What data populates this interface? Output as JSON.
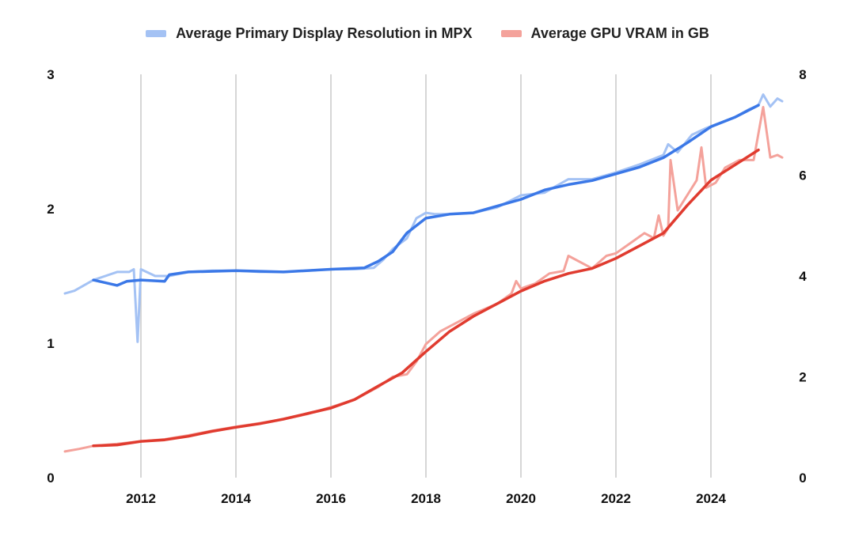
{
  "chart_data": {
    "type": "line",
    "legend_position": "top",
    "grid": {
      "vertical": true,
      "horizontal": false
    },
    "xlim": [
      2010.4,
      2025.5
    ],
    "x_ticks": [
      2012,
      2014,
      2016,
      2018,
      2020,
      2022,
      2024
    ],
    "y_left": {
      "lim": [
        0,
        3
      ],
      "ticks": [
        0,
        1,
        2,
        3
      ]
    },
    "y_right": {
      "lim": [
        0,
        8
      ],
      "ticks": [
        0,
        2,
        4,
        6,
        8
      ]
    },
    "series": [
      {
        "name": "Average Primary Display Resolution in MPX",
        "axis": "left",
        "color": "#a4c2f4",
        "trend_color": "#3b78e7",
        "raw": [
          [
            2010.4,
            1.37
          ],
          [
            2010.6,
            1.39
          ],
          [
            2011.0,
            1.47
          ],
          [
            2011.5,
            1.53
          ],
          [
            2011.75,
            1.53
          ],
          [
            2011.85,
            1.55
          ],
          [
            2011.93,
            1.01
          ],
          [
            2012.0,
            1.55
          ],
          [
            2012.3,
            1.5
          ],
          [
            2012.6,
            1.5
          ],
          [
            2013.0,
            1.53
          ],
          [
            2013.5,
            1.54
          ],
          [
            2014.0,
            1.54
          ],
          [
            2014.5,
            1.53
          ],
          [
            2015.0,
            1.53
          ],
          [
            2015.5,
            1.54
          ],
          [
            2016.0,
            1.55
          ],
          [
            2016.5,
            1.55
          ],
          [
            2016.9,
            1.56
          ],
          [
            2017.1,
            1.62
          ],
          [
            2017.3,
            1.7
          ],
          [
            2017.6,
            1.78
          ],
          [
            2017.8,
            1.93
          ],
          [
            2018.0,
            1.97
          ],
          [
            2018.2,
            1.96
          ],
          [
            2018.5,
            1.96
          ],
          [
            2019.0,
            1.97
          ],
          [
            2019.5,
            2.01
          ],
          [
            2020.0,
            2.1
          ],
          [
            2020.5,
            2.12
          ],
          [
            2021.0,
            2.22
          ],
          [
            2021.5,
            2.22
          ],
          [
            2022.0,
            2.27
          ],
          [
            2022.5,
            2.33
          ],
          [
            2023.0,
            2.4
          ],
          [
            2023.1,
            2.48
          ],
          [
            2023.3,
            2.42
          ],
          [
            2023.6,
            2.55
          ],
          [
            2023.9,
            2.6
          ],
          [
            2024.2,
            2.64
          ],
          [
            2024.5,
            2.68
          ],
          [
            2024.8,
            2.74
          ],
          [
            2025.0,
            2.77
          ],
          [
            2025.1,
            2.85
          ],
          [
            2025.25,
            2.76
          ],
          [
            2025.4,
            2.82
          ],
          [
            2025.5,
            2.8
          ]
        ],
        "trend": [
          [
            2011.0,
            1.47
          ],
          [
            2011.5,
            1.43
          ],
          [
            2011.7,
            1.46
          ],
          [
            2012.0,
            1.47
          ],
          [
            2012.5,
            1.46
          ],
          [
            2012.6,
            1.51
          ],
          [
            2013.0,
            1.53
          ],
          [
            2014.0,
            1.54
          ],
          [
            2015.0,
            1.53
          ],
          [
            2016.0,
            1.55
          ],
          [
            2016.7,
            1.56
          ],
          [
            2017.0,
            1.61
          ],
          [
            2017.3,
            1.68
          ],
          [
            2017.6,
            1.82
          ],
          [
            2018.0,
            1.93
          ],
          [
            2018.5,
            1.96
          ],
          [
            2019.0,
            1.97
          ],
          [
            2019.5,
            2.02
          ],
          [
            2020.0,
            2.07
          ],
          [
            2020.5,
            2.14
          ],
          [
            2021.0,
            2.18
          ],
          [
            2021.5,
            2.21
          ],
          [
            2022.0,
            2.26
          ],
          [
            2022.5,
            2.31
          ],
          [
            2023.0,
            2.38
          ],
          [
            2023.5,
            2.49
          ],
          [
            2024.0,
            2.61
          ],
          [
            2024.5,
            2.68
          ],
          [
            2025.0,
            2.77
          ]
        ]
      },
      {
        "name": "Average GPU VRAM in GB",
        "axis": "right",
        "color": "#f4a29b",
        "trend_color": "#e03b2f",
        "raw": [
          [
            2010.4,
            0.52
          ],
          [
            2010.7,
            0.57
          ],
          [
            2011.0,
            0.63
          ],
          [
            2011.5,
            0.67
          ],
          [
            2012.0,
            0.72
          ],
          [
            2012.5,
            0.76
          ],
          [
            2013.0,
            0.84
          ],
          [
            2013.5,
            0.93
          ],
          [
            2014.0,
            1.01
          ],
          [
            2014.5,
            1.08
          ],
          [
            2015.0,
            1.16
          ],
          [
            2015.5,
            1.26
          ],
          [
            2016.0,
            1.4
          ],
          [
            2016.5,
            1.55
          ],
          [
            2017.0,
            1.8
          ],
          [
            2017.3,
            2.0
          ],
          [
            2017.6,
            2.05
          ],
          [
            2017.8,
            2.3
          ],
          [
            2018.0,
            2.65
          ],
          [
            2018.3,
            2.9
          ],
          [
            2018.6,
            3.05
          ],
          [
            2019.0,
            3.25
          ],
          [
            2019.5,
            3.45
          ],
          [
            2019.8,
            3.65
          ],
          [
            2019.9,
            3.9
          ],
          [
            2020.0,
            3.75
          ],
          [
            2020.3,
            3.85
          ],
          [
            2020.6,
            4.05
          ],
          [
            2020.9,
            4.1
          ],
          [
            2021.0,
            4.4
          ],
          [
            2021.5,
            4.15
          ],
          [
            2021.8,
            4.4
          ],
          [
            2022.0,
            4.45
          ],
          [
            2022.3,
            4.65
          ],
          [
            2022.6,
            4.85
          ],
          [
            2022.8,
            4.75
          ],
          [
            2022.9,
            5.2
          ],
          [
            2023.0,
            4.8
          ],
          [
            2023.1,
            4.95
          ],
          [
            2023.15,
            6.3
          ],
          [
            2023.3,
            5.3
          ],
          [
            2023.5,
            5.6
          ],
          [
            2023.7,
            5.9
          ],
          [
            2023.8,
            6.55
          ],
          [
            2023.9,
            5.75
          ],
          [
            2024.1,
            5.85
          ],
          [
            2024.3,
            6.15
          ],
          [
            2024.6,
            6.3
          ],
          [
            2024.9,
            6.3
          ],
          [
            2025.1,
            7.35
          ],
          [
            2025.25,
            6.35
          ],
          [
            2025.4,
            6.4
          ],
          [
            2025.5,
            6.35
          ]
        ],
        "trend": [
          [
            2011.0,
            0.63
          ],
          [
            2011.5,
            0.65
          ],
          [
            2012.0,
            0.72
          ],
          [
            2012.5,
            0.75
          ],
          [
            2013.0,
            0.82
          ],
          [
            2013.5,
            0.92
          ],
          [
            2014.0,
            1.0
          ],
          [
            2014.5,
            1.07
          ],
          [
            2015.0,
            1.16
          ],
          [
            2015.5,
            1.27
          ],
          [
            2016.0,
            1.38
          ],
          [
            2016.5,
            1.55
          ],
          [
            2017.0,
            1.82
          ],
          [
            2017.5,
            2.08
          ],
          [
            2018.0,
            2.5
          ],
          [
            2018.5,
            2.9
          ],
          [
            2019.0,
            3.2
          ],
          [
            2019.5,
            3.45
          ],
          [
            2020.0,
            3.7
          ],
          [
            2020.5,
            3.9
          ],
          [
            2021.0,
            4.05
          ],
          [
            2021.5,
            4.15
          ],
          [
            2022.0,
            4.35
          ],
          [
            2022.5,
            4.6
          ],
          [
            2023.0,
            4.85
          ],
          [
            2023.5,
            5.4
          ],
          [
            2024.0,
            5.9
          ],
          [
            2024.5,
            6.2
          ],
          [
            2025.0,
            6.5
          ]
        ]
      }
    ]
  }
}
